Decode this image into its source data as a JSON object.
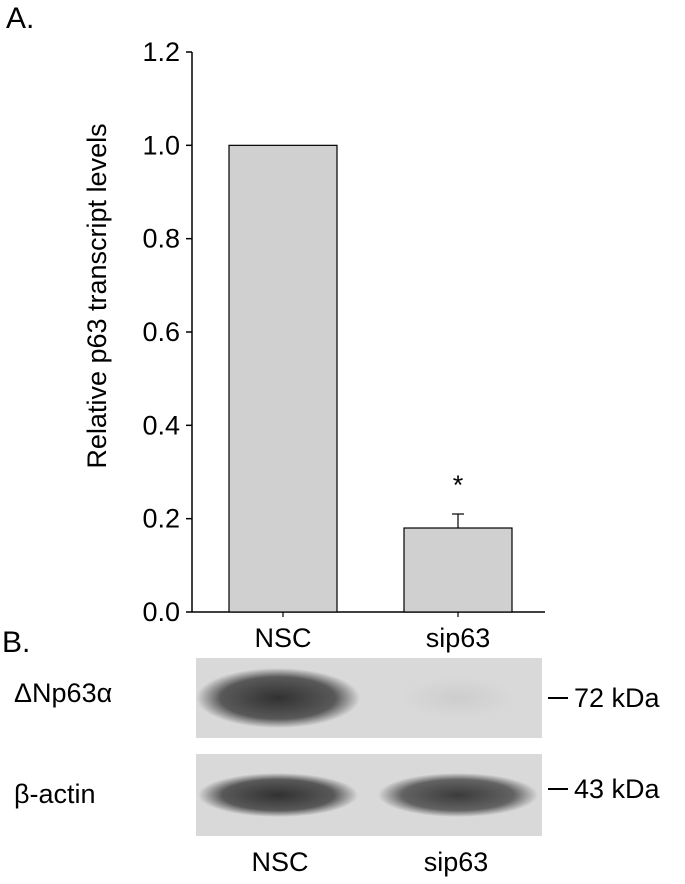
{
  "panel_a_label": "A.",
  "panel_b_label": "B.",
  "chart_data": {
    "type": "bar",
    "categories": [
      "NSC",
      "sip63"
    ],
    "values": [
      1.0,
      0.18
    ],
    "error_bars": [
      0,
      0.03
    ],
    "significance": [
      "",
      "*"
    ],
    "ylabel": "Relative p63 transcript levels",
    "xlabel": "",
    "ylim": [
      0,
      1.2
    ],
    "yticks": [
      "0.0",
      "0.2",
      "0.4",
      "0.6",
      "0.8",
      "1.0",
      "1.2"
    ],
    "bar_color": "#d0d0d0",
    "grid": false
  },
  "blots": [
    {
      "label": "ΔNp63α",
      "marker": "72 kDa",
      "band_intensity": [
        0.9,
        0.08
      ]
    },
    {
      "label": "β-actin",
      "marker": "43 kDa",
      "band_intensity": [
        0.9,
        0.85
      ]
    }
  ],
  "blot_lanes": [
    "NSC",
    "sip63"
  ]
}
